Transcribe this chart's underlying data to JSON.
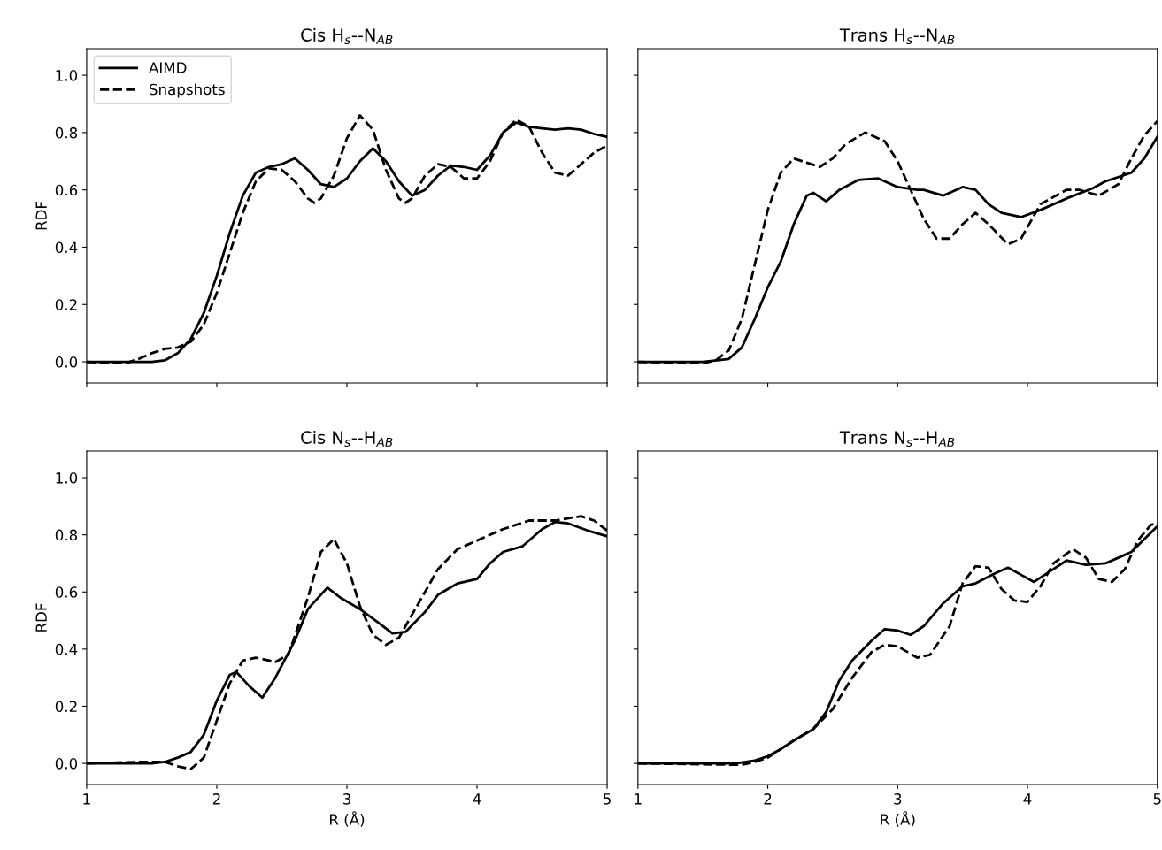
{
  "chart_data": [
    {
      "type": "line",
      "title": "Cis H$_{s}$--N$_{AB}$",
      "ylabel": "RDF",
      "xlim": [
        1,
        5
      ],
      "ylim": [
        -0.074,
        1.093
      ],
      "xticks": [
        {
          "value": 1,
          "label": null
        },
        {
          "value": 2,
          "label": null
        },
        {
          "value": 3,
          "label": null
        },
        {
          "value": 4,
          "label": null
        },
        {
          "value": 5,
          "label": null
        }
      ],
      "yticks": [
        {
          "value": 0,
          "label": "0.0"
        },
        {
          "value": 0.2,
          "label": "0.2"
        },
        {
          "value": 0.4,
          "label": "0.4"
        },
        {
          "value": 0.6,
          "label": "0.6"
        },
        {
          "value": 0.8,
          "label": "0.8"
        },
        {
          "value": 1,
          "label": "1.0"
        }
      ],
      "tick_labels": "y",
      "legend": "top left",
      "grid": false,
      "series": [
        {
          "name": "AIMD",
          "color": "#000000",
          "line_style": "solid",
          "x": [
            1,
            1.5,
            1.6,
            1.7,
            1.8,
            1.9,
            2.0,
            2.1,
            2.2,
            2.3,
            2.4,
            2.5,
            2.6,
            2.7,
            2.8,
            2.9,
            3.0,
            3.1,
            3.2,
            3.3,
            3.4,
            3.5,
            3.6,
            3.7,
            3.8,
            3.9,
            4.0,
            4.1,
            4.2,
            4.3,
            4.4,
            4.5,
            4.6,
            4.7,
            4.8,
            4.9,
            5.0
          ],
          "values": [
            0,
            0,
            0.005,
            0.03,
            0.08,
            0.17,
            0.3,
            0.45,
            0.58,
            0.66,
            0.68,
            0.69,
            0.71,
            0.67,
            0.62,
            0.61,
            0.64,
            0.7,
            0.745,
            0.7,
            0.63,
            0.58,
            0.6,
            0.65,
            0.685,
            0.68,
            0.67,
            0.72,
            0.8,
            0.835,
            0.82,
            0.815,
            0.81,
            0.815,
            0.81,
            0.795,
            0.785
          ]
        },
        {
          "name": "Snapshots",
          "color": "#000000",
          "line_style": "dashed",
          "x": [
            1,
            1.2,
            1.3,
            1.4,
            1.5,
            1.6,
            1.7,
            1.8,
            1.9,
            2.0,
            2.1,
            2.2,
            2.3,
            2.4,
            2.5,
            2.6,
            2.7,
            2.75,
            2.8,
            2.9,
            3.0,
            3.1,
            3.2,
            3.3,
            3.4,
            3.45,
            3.5,
            3.6,
            3.7,
            3.8,
            3.9,
            4.0,
            4.1,
            4.2,
            4.3,
            4.4,
            4.5,
            4.6,
            4.7,
            4.8,
            4.9,
            5.0
          ],
          "values": [
            0,
            -0.005,
            -0.005,
            0.01,
            0.03,
            0.045,
            0.05,
            0.07,
            0.13,
            0.24,
            0.38,
            0.52,
            0.63,
            0.675,
            0.67,
            0.63,
            0.57,
            0.555,
            0.57,
            0.65,
            0.78,
            0.86,
            0.81,
            0.67,
            0.57,
            0.555,
            0.57,
            0.65,
            0.69,
            0.68,
            0.64,
            0.64,
            0.7,
            0.8,
            0.845,
            0.82,
            0.73,
            0.66,
            0.65,
            0.69,
            0.73,
            0.755
          ]
        }
      ]
    },
    {
      "type": "line",
      "title": "Trans H$_{s}$--N$_{AB}$",
      "xlim": [
        1,
        5
      ],
      "ylim": [
        -0.074,
        1.093
      ],
      "xticks": [
        {
          "value": 1,
          "label": null
        },
        {
          "value": 2,
          "label": null
        },
        {
          "value": 3,
          "label": null
        },
        {
          "value": 4,
          "label": null
        },
        {
          "value": 5,
          "label": null
        }
      ],
      "yticks": [
        {
          "value": 0,
          "label": null
        },
        {
          "value": 0.2,
          "label": null
        },
        {
          "value": 0.4,
          "label": null
        },
        {
          "value": 0.6,
          "label": null
        },
        {
          "value": 0.8,
          "label": null
        },
        {
          "value": 1,
          "label": null
        }
      ],
      "tick_labels": false,
      "grid": false,
      "series": [
        {
          "color": "#000000",
          "line_style": "solid",
          "x": [
            1,
            1.5,
            1.7,
            1.8,
            1.9,
            2.0,
            2.1,
            2.2,
            2.3,
            2.35,
            2.45,
            2.55,
            2.7,
            2.85,
            3.0,
            3.15,
            3.2,
            3.35,
            3.5,
            3.6,
            3.7,
            3.8,
            3.95,
            4.1,
            4.3,
            4.5,
            4.6,
            4.8,
            4.9,
            5.0
          ],
          "values": [
            0,
            0,
            0.01,
            0.05,
            0.15,
            0.26,
            0.35,
            0.48,
            0.58,
            0.59,
            0.56,
            0.6,
            0.635,
            0.64,
            0.61,
            0.6,
            0.6,
            0.58,
            0.61,
            0.6,
            0.55,
            0.52,
            0.505,
            0.53,
            0.57,
            0.605,
            0.63,
            0.66,
            0.71,
            0.785
          ]
        },
        {
          "color": "#000000",
          "line_style": "dashed",
          "x": [
            1,
            1.5,
            1.6,
            1.7,
            1.8,
            1.9,
            2.0,
            2.1,
            2.2,
            2.3,
            2.4,
            2.5,
            2.6,
            2.75,
            2.9,
            3.0,
            3.1,
            3.2,
            3.3,
            3.4,
            3.5,
            3.6,
            3.7,
            3.85,
            3.95,
            4.1,
            4.3,
            4.4,
            4.55,
            4.7,
            4.8,
            4.9,
            5.0
          ],
          "values": [
            0,
            -0.005,
            0.005,
            0.04,
            0.15,
            0.34,
            0.53,
            0.66,
            0.71,
            0.695,
            0.68,
            0.71,
            0.76,
            0.8,
            0.77,
            0.7,
            0.6,
            0.5,
            0.43,
            0.43,
            0.48,
            0.52,
            0.48,
            0.41,
            0.43,
            0.55,
            0.6,
            0.6,
            0.58,
            0.62,
            0.71,
            0.79,
            0.84
          ]
        }
      ]
    },
    {
      "type": "line",
      "title": "Cis N$_{s}$--H$_{AB}$",
      "xlabel": "R (Å)",
      "ylabel": "RDF",
      "xlim": [
        1,
        5
      ],
      "ylim": [
        -0.074,
        1.093
      ],
      "xticks": [
        1,
        2,
        3,
        4,
        5
      ],
      "yticks": [
        {
          "value": 0,
          "label": "0.0"
        },
        {
          "value": 0.2,
          "label": "0.2"
        },
        {
          "value": 0.4,
          "label": "0.4"
        },
        {
          "value": 0.6,
          "label": "0.6"
        },
        {
          "value": 0.8,
          "label": "0.8"
        },
        {
          "value": 1,
          "label": "1.0"
        }
      ],
      "grid": false,
      "series": [
        {
          "color": "#000000",
          "line_style": "solid",
          "x": [
            1,
            1.5,
            1.6,
            1.7,
            1.8,
            1.9,
            2.0,
            2.1,
            2.15,
            2.25,
            2.35,
            2.45,
            2.6,
            2.7,
            2.85,
            2.95,
            3.1,
            3.25,
            3.35,
            3.45,
            3.6,
            3.7,
            3.85,
            4.0,
            4.1,
            4.2,
            4.35,
            4.5,
            4.6,
            4.7,
            4.85,
            5.0
          ],
          "values": [
            0,
            0,
            0.005,
            0.02,
            0.04,
            0.1,
            0.22,
            0.31,
            0.32,
            0.27,
            0.23,
            0.3,
            0.43,
            0.54,
            0.615,
            0.58,
            0.54,
            0.49,
            0.455,
            0.46,
            0.53,
            0.59,
            0.63,
            0.645,
            0.7,
            0.74,
            0.76,
            0.82,
            0.845,
            0.84,
            0.815,
            0.795
          ]
        },
        {
          "color": "#000000",
          "line_style": "dashed",
          "x": [
            1,
            1.4,
            1.6,
            1.7,
            1.8,
            1.9,
            2.0,
            2.1,
            2.2,
            2.3,
            2.45,
            2.55,
            2.7,
            2.8,
            2.9,
            3.0,
            3.1,
            3.2,
            3.3,
            3.4,
            3.55,
            3.7,
            3.85,
            4.0,
            4.2,
            4.4,
            4.6,
            4.8,
            4.9,
            5.0
          ],
          "values": [
            0,
            0.005,
            0.005,
            -0.01,
            -0.02,
            0.02,
            0.15,
            0.28,
            0.36,
            0.37,
            0.355,
            0.38,
            0.58,
            0.74,
            0.785,
            0.7,
            0.55,
            0.45,
            0.415,
            0.44,
            0.56,
            0.68,
            0.75,
            0.78,
            0.82,
            0.85,
            0.85,
            0.865,
            0.85,
            0.815
          ]
        }
      ]
    },
    {
      "type": "line",
      "title": "Trans N$_{s}$--H$_{AB}$",
      "xlabel": "R (Å)",
      "xlim": [
        1,
        5
      ],
      "ylim": [
        -0.074,
        1.093
      ],
      "xticks": [
        1,
        2,
        3,
        4,
        5
      ],
      "yticks": [
        {
          "value": 0,
          "label": null
        },
        {
          "value": 0.2,
          "label": null
        },
        {
          "value": 0.4,
          "label": null
        },
        {
          "value": 0.6,
          "label": null
        },
        {
          "value": 0.8,
          "label": null
        },
        {
          "value": 1,
          "label": null
        }
      ],
      "tick_labels": "x",
      "grid": false,
      "series": [
        {
          "color": "#000000",
          "line_style": "solid",
          "x": [
            1,
            1.75,
            1.9,
            2.0,
            2.1,
            2.2,
            2.35,
            2.45,
            2.55,
            2.65,
            2.8,
            2.9,
            3.0,
            3.1,
            3.2,
            3.35,
            3.5,
            3.6,
            3.75,
            3.85,
            3.95,
            4.05,
            4.2,
            4.3,
            4.45,
            4.6,
            4.8,
            5.0
          ],
          "values": [
            0,
            0,
            0.01,
            0.025,
            0.05,
            0.08,
            0.12,
            0.18,
            0.29,
            0.36,
            0.43,
            0.47,
            0.465,
            0.45,
            0.48,
            0.56,
            0.62,
            0.63,
            0.665,
            0.685,
            0.66,
            0.635,
            0.68,
            0.71,
            0.695,
            0.7,
            0.74,
            0.83
          ]
        },
        {
          "color": "#000000",
          "line_style": "dashed",
          "x": [
            1,
            1.8,
            1.9,
            2.0,
            2.1,
            2.2,
            2.35,
            2.5,
            2.65,
            2.8,
            2.9,
            3.0,
            3.15,
            3.25,
            3.4,
            3.5,
            3.6,
            3.7,
            3.8,
            3.9,
            4.0,
            4.1,
            4.2,
            4.35,
            4.45,
            4.55,
            4.65,
            4.75,
            4.85,
            4.95,
            5.0
          ],
          "values": [
            0,
            -0.005,
            0.005,
            0.02,
            0.05,
            0.08,
            0.12,
            0.19,
            0.3,
            0.39,
            0.415,
            0.41,
            0.37,
            0.38,
            0.48,
            0.63,
            0.69,
            0.685,
            0.61,
            0.57,
            0.565,
            0.62,
            0.7,
            0.75,
            0.72,
            0.645,
            0.635,
            0.68,
            0.78,
            0.835,
            0.84
          ]
        }
      ]
    }
  ]
}
